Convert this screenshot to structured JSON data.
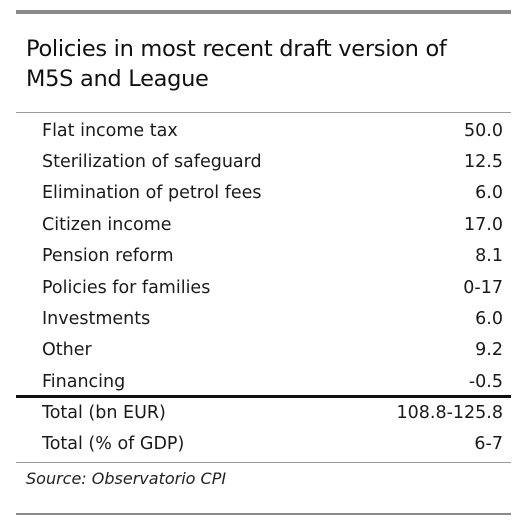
{
  "table": {
    "title_line1": "Policies in most recent draft version of",
    "title_line2": "M5S and League",
    "rows": [
      {
        "label": "Flat income tax",
        "value": "50.0"
      },
      {
        "label": "Sterilization of safeguard",
        "value": "12.5"
      },
      {
        "label": "Elimination of petrol fees",
        "value": "6.0"
      },
      {
        "label": "Citizen income",
        "value": "17.0"
      },
      {
        "label": "Pension reform",
        "value": "8.1"
      },
      {
        "label": "Policies for families",
        "value": "0-17"
      },
      {
        "label": "Investments",
        "value": "6.0"
      },
      {
        "label": "Other",
        "value": "9.2"
      },
      {
        "label": "Financing",
        "value": "-0.5"
      }
    ],
    "totals": [
      {
        "label": "Total (bn EUR)",
        "value": "108.8-125.8"
      },
      {
        "label": "Total (% of GDP)",
        "value": "6-7"
      }
    ],
    "source": "Source: Observatorio CPI"
  },
  "colors": {
    "rule_gray": "#8a8a8a",
    "rule_dark": "#111111",
    "text": "#1a1a1a"
  }
}
